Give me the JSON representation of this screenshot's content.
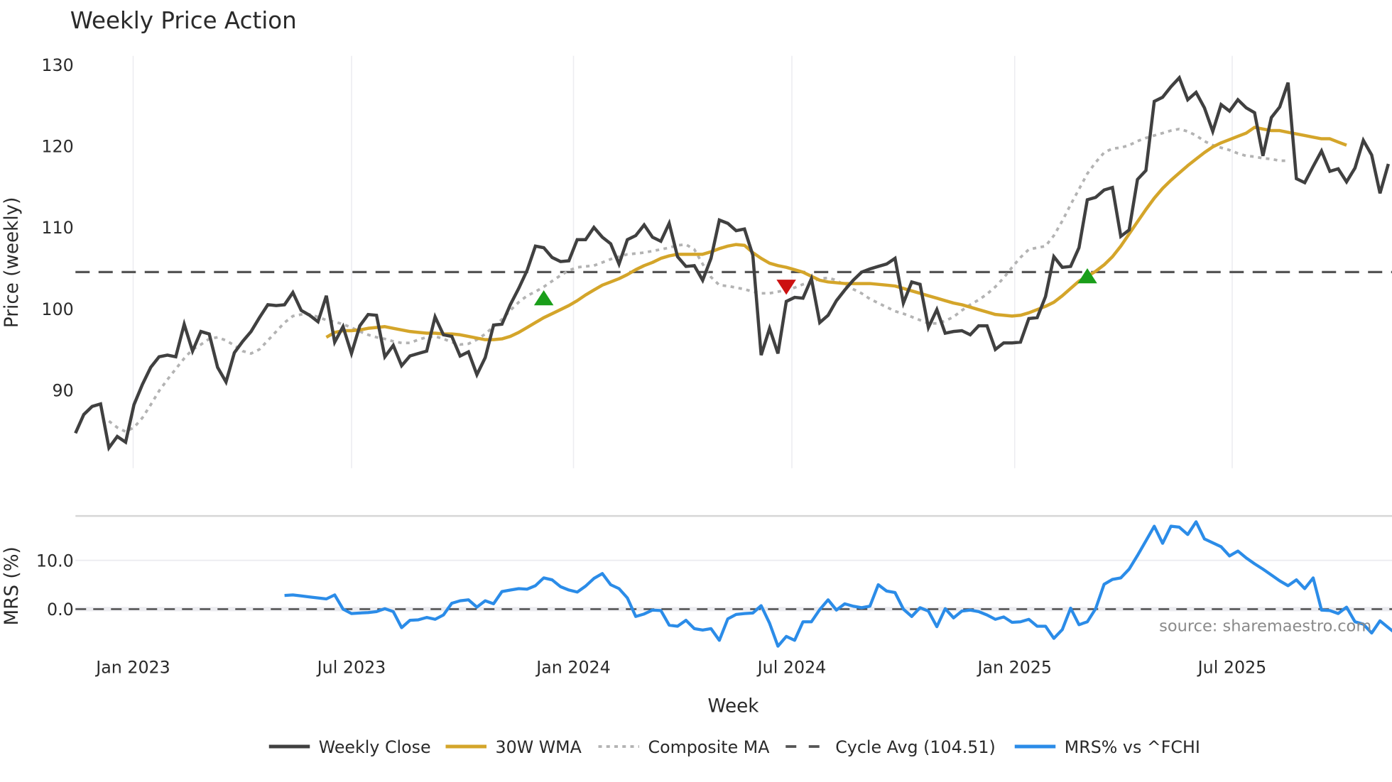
{
  "title": "Weekly Price Action",
  "source_note": "source: sharemaestro.com",
  "colors": {
    "close": "#404040",
    "wma": "#d4a52a",
    "composite": "#b3b3b3",
    "cycle": "#555555",
    "mrs": "#2b8ce8",
    "buy": "#1a9e1a",
    "sell": "#cc1111",
    "grid": "#ececf0"
  },
  "legend": [
    {
      "key": "close",
      "label": "Weekly Close",
      "style": "solid"
    },
    {
      "key": "wma",
      "label": "30W WMA",
      "style": "solid"
    },
    {
      "key": "composite",
      "label": "Composite MA",
      "style": "dotted"
    },
    {
      "key": "cycle",
      "label": "Cycle Avg (104.51)",
      "style": "dashed"
    },
    {
      "key": "mrs",
      "label": "MRS% vs ^FCHI",
      "style": "solid"
    }
  ],
  "chart_data": [
    {
      "type": "line",
      "title": "Weekly Price Action",
      "xlabel": "Week",
      "ylabel": "Price (weekly)",
      "ylim": [
        80.5,
        131
      ],
      "yticks": [
        90,
        100,
        110,
        120,
        130
      ],
      "xticks": [
        "Jan 2023",
        "Jul 2023",
        "Jan 2024",
        "Jul 2024",
        "Jan 2025",
        "Jul 2025"
      ],
      "x_start": "2022-11-14",
      "x_step_weeks": 1,
      "grid": true,
      "legend_position": "bottom",
      "cycle_avg": 104.51,
      "series": [
        {
          "name": "Weekly Close",
          "values": [
            84.7,
            87.0,
            88.0,
            88.3,
            82.9,
            84.3,
            83.6,
            88.2,
            90.7,
            92.8,
            94.1,
            94.3,
            94.1,
            98.1,
            94.8,
            97.2,
            96.9,
            92.8,
            91.0,
            94.6,
            96.0,
            97.2,
            98.9,
            100.5,
            100.4,
            100.5,
            102.0,
            99.8,
            99.2,
            98.4,
            101.6,
            95.9,
            97.8,
            94.5,
            97.9,
            99.3,
            99.2,
            94.1,
            95.5,
            93.0,
            94.2,
            94.5,
            94.8,
            99.0,
            96.8,
            96.6,
            94.2,
            94.7,
            91.9,
            94.0,
            98.0,
            98.1,
            100.5,
            102.5,
            104.7,
            107.7,
            107.5,
            106.3,
            105.8,
            105.9,
            108.5,
            108.5,
            110.0,
            108.8,
            108.0,
            105.5,
            108.5,
            109.0,
            110.3,
            108.8,
            108.3,
            110.5,
            106.4,
            105.2,
            105.3,
            103.5,
            106.2,
            110.9,
            110.5,
            109.6,
            109.8,
            106.6,
            94.3,
            97.6,
            94.5,
            100.9,
            101.4,
            101.3,
            103.7,
            98.3,
            99.2,
            101.0,
            102.3,
            103.5,
            104.5,
            104.9,
            105.2,
            105.5,
            106.2,
            100.7,
            103.3,
            103.0,
            97.7,
            99.9,
            97.0,
            97.2,
            97.3,
            96.8,
            97.9,
            97.9,
            95.0,
            95.8,
            95.8,
            95.9,
            98.8,
            98.9,
            101.5,
            106.4,
            105.1,
            105.2,
            107.5,
            113.4,
            113.7,
            114.6,
            114.9,
            108.9,
            109.7,
            115.9,
            117.0,
            125.5,
            126.0,
            127.3,
            128.4,
            125.7,
            126.6,
            124.7,
            121.8,
            125.1,
            124.3,
            125.7,
            124.7,
            124.1,
            118.8,
            123.5,
            124.8,
            127.8,
            116.0,
            115.5,
            117.5,
            119.4,
            116.9,
            117.2,
            115.6,
            117.3,
            120.7,
            118.9,
            114.2,
            117.8
          ]
        },
        {
          "name": "30W WMA",
          "start_index": 30,
          "values": [
            96.5,
            97.1,
            97.3,
            97.3,
            97.4,
            97.6,
            97.7,
            97.8,
            97.6,
            97.4,
            97.2,
            97.1,
            97.0,
            97.0,
            96.9,
            96.9,
            96.8,
            96.6,
            96.4,
            96.2,
            96.2,
            96.3,
            96.6,
            97.1,
            97.7,
            98.3,
            98.9,
            99.4,
            99.9,
            100.4,
            101.0,
            101.7,
            102.3,
            102.9,
            103.3,
            103.7,
            104.2,
            104.8,
            105.3,
            105.7,
            106.2,
            106.5,
            106.7,
            106.7,
            106.7,
            106.7,
            107.0,
            107.4,
            107.7,
            107.9,
            107.8,
            106.9,
            106.2,
            105.6,
            105.3,
            105.1,
            104.8,
            104.5,
            104.0,
            103.5,
            103.3,
            103.2,
            103.1,
            103.1,
            103.1,
            103.1,
            103.0,
            102.9,
            102.8,
            102.5,
            102.2,
            101.9,
            101.6,
            101.3,
            101.0,
            100.7,
            100.5,
            100.2,
            99.9,
            99.6,
            99.3,
            99.2,
            99.1,
            99.2,
            99.5,
            99.9,
            100.3,
            100.8,
            101.6,
            102.5,
            103.4,
            104.0,
            104.6,
            105.4,
            106.4,
            107.7,
            109.2,
            110.7,
            112.2,
            113.6,
            114.8,
            115.8,
            116.7,
            117.6,
            118.4,
            119.2,
            119.9,
            120.4,
            120.8,
            121.2,
            121.6,
            122.3,
            122.1,
            121.9,
            121.9,
            121.7,
            121.5,
            121.3,
            121.1,
            120.9,
            120.9,
            120.5,
            120.1
          ]
        },
        {
          "name": "Composite MA",
          "start_index": 4,
          "values": [
            86.2,
            85.4,
            84.9,
            85.4,
            86.6,
            88.2,
            89.9,
            91.3,
            92.6,
            93.9,
            95.0,
            95.6,
            96.3,
            96.5,
            96.1,
            95.5,
            94.8,
            94.5,
            95.0,
            96.1,
            97.2,
            98.3,
            99.1,
            99.3,
            99.3,
            99.0,
            98.6,
            98.4,
            98.1,
            97.7,
            97.2,
            96.8,
            96.5,
            96.3,
            96.0,
            95.8,
            95.8,
            96.2,
            96.5,
            96.6,
            96.3,
            95.9,
            95.6,
            95.7,
            96.2,
            96.9,
            97.8,
            98.7,
            99.8,
            100.8,
            101.6,
            102.1,
            102.7,
            103.4,
            104.1,
            104.7,
            105.1,
            105.2,
            105.3,
            105.7,
            106.1,
            106.4,
            106.7,
            106.8,
            106.9,
            107.1,
            107.3,
            107.5,
            107.8,
            107.9,
            107.3,
            105.5,
            103.9,
            102.9,
            102.8,
            102.6,
            102.4,
            102.1,
            101.9,
            101.9,
            102.1,
            102.3,
            102.6,
            103.0,
            103.3,
            103.7,
            103.8,
            103.5,
            102.9,
            102.4,
            101.9,
            101.2,
            100.7,
            100.2,
            99.7,
            99.4,
            99.0,
            98.6,
            98.2,
            98.2,
            98.5,
            99.0,
            99.8,
            100.5,
            101.1,
            101.8,
            102.7,
            103.8,
            105.1,
            106.3,
            107.3,
            107.5,
            107.7,
            109.0,
            110.8,
            112.8,
            114.7,
            116.6,
            118.0,
            119.2,
            119.7,
            119.8,
            120.1,
            120.6,
            121.0,
            121.3,
            121.6,
            121.9,
            122.1,
            121.8,
            121.3,
            120.6,
            120.1,
            119.8,
            119.5,
            119.1,
            118.8,
            118.7,
            118.5,
            118.4,
            118.2,
            118.2
          ]
        }
      ],
      "markers": [
        {
          "type": "buy",
          "label": "triangle-up",
          "x_index": 56,
          "value": 101.3
        },
        {
          "type": "sell",
          "label": "triangle-down",
          "x_index": 85,
          "value": 102.7
        },
        {
          "type": "buy",
          "label": "triangle-up",
          "x_index": 121,
          "value": 104.0
        }
      ]
    },
    {
      "type": "line",
      "title": "",
      "xlabel": "Week",
      "ylabel": "MRS (%)",
      "ylim": [
        -8,
        20
      ],
      "yticks": [
        0.0,
        10.0
      ],
      "ytick_labels": [
        "0.0",
        "10.0"
      ],
      "zero_line": 0.0,
      "series": [
        {
          "name": "MRS% vs ^FCHI",
          "start_index": 25,
          "values": [
            2.8,
            2.9,
            2.7,
            2.5,
            2.3,
            2.1,
            2.9,
            0.0,
            -0.9,
            -0.8,
            -0.7,
            -0.5,
            0.1,
            -0.5,
            -3.8,
            -2.3,
            -2.2,
            -1.7,
            -2.1,
            -1.2,
            1.2,
            1.7,
            1.9,
            0.4,
            1.7,
            1.1,
            3.6,
            3.9,
            4.2,
            4.1,
            4.8,
            6.4,
            6.0,
            4.6,
            3.9,
            3.5,
            4.7,
            6.3,
            7.3,
            5.0,
            4.2,
            2.3,
            -1.5,
            -1.0,
            -0.2,
            -0.3,
            -3.3,
            -3.5,
            -2.3,
            -4.0,
            -4.3,
            -4.0,
            -6.4,
            -2.0,
            -1.1,
            -0.9,
            -0.8,
            0.7,
            -2.9,
            -7.6,
            -5.6,
            -6.4,
            -2.6,
            -2.6,
            -0.1,
            1.9,
            -0.2,
            1.1,
            0.6,
            0.3,
            0.6,
            5.0,
            3.7,
            3.4,
            0.0,
            -1.5,
            0.3,
            -0.4,
            -3.6,
            0.1,
            -1.8,
            -0.4,
            -0.2,
            -0.5,
            -1.2,
            -2.1,
            -1.6,
            -2.7,
            -2.6,
            -2.1,
            -3.5,
            -3.5,
            -6.0,
            -4.2,
            0.2,
            -3.2,
            -2.6,
            0.1,
            5.1,
            6.1,
            6.4,
            8.2,
            11.0,
            14.0,
            17.0,
            13.5,
            17.0,
            16.8,
            15.3,
            17.9,
            14.4,
            13.6,
            12.8,
            10.9,
            11.9,
            10.5,
            9.3,
            8.2,
            7.0,
            5.8,
            4.8,
            6.0,
            4.2,
            6.4,
            -0.2,
            -0.3,
            -0.9,
            0.4,
            -2.6,
            -3.1,
            -4.9,
            -2.4,
            -3.8,
            -5.2,
            -5.8,
            -4.6
          ]
        }
      ]
    }
  ],
  "axes": {
    "price_ylabel": "Price (weekly)",
    "mrs_ylabel": "MRS (%)",
    "xlabel": "Week",
    "price_ticks": [
      "130",
      "120",
      "110",
      "100",
      "90"
    ],
    "mrs_ticks": [
      "10.0",
      "0.0"
    ],
    "x_ticks": [
      "Jan 2023",
      "Jul 2023",
      "Jan 2024",
      "Jul 2024",
      "Jan 2025",
      "Jul 2025"
    ]
  }
}
